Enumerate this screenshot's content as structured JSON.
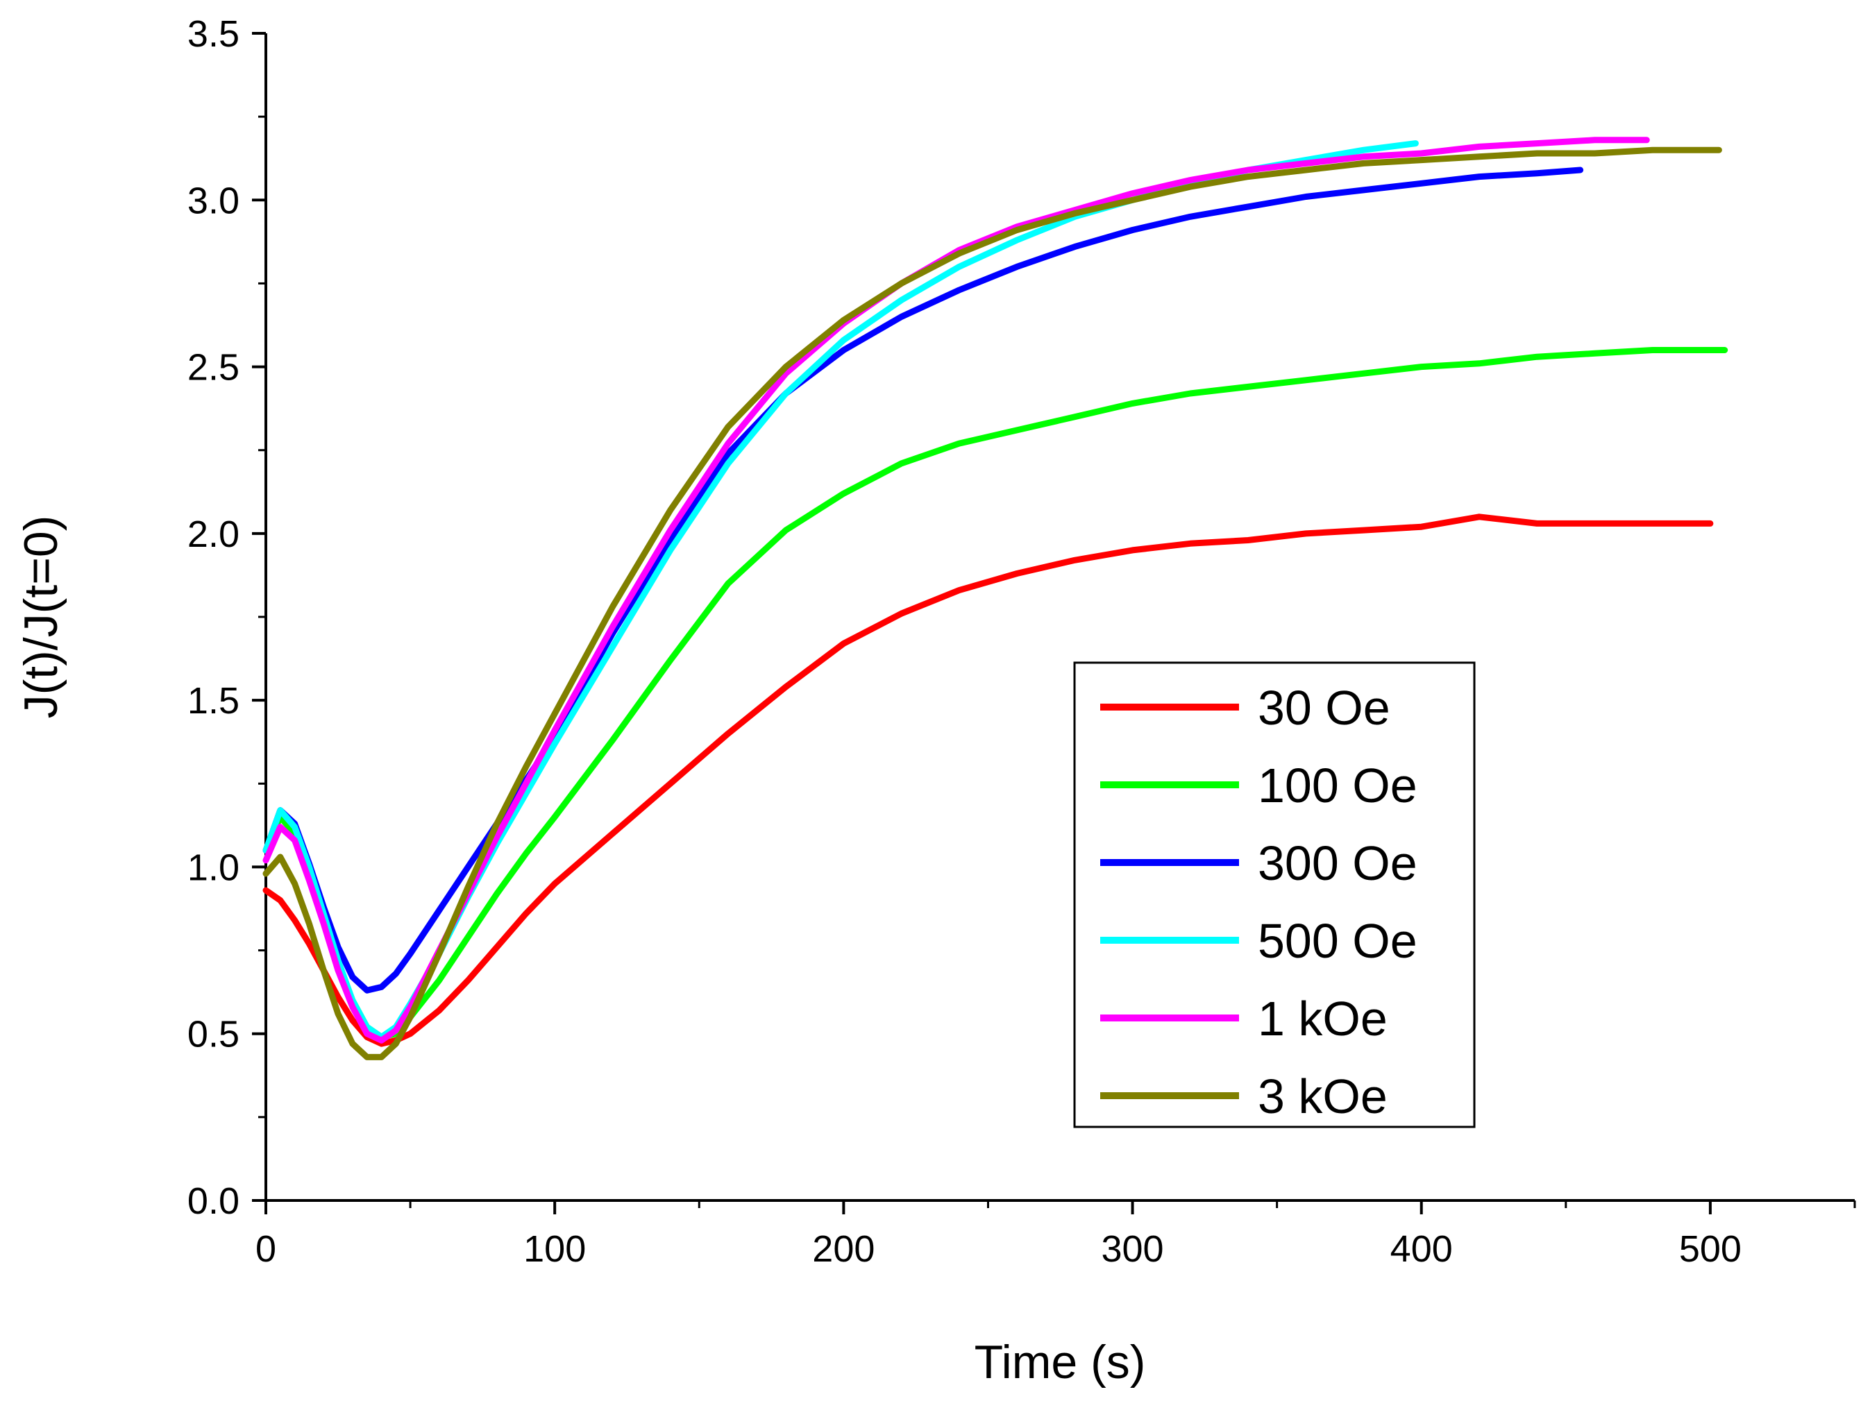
{
  "chart_data": {
    "type": "line",
    "title": "",
    "xlabel": "Time (s)",
    "ylabel": "J(t)/J(t=0)",
    "xlim": [
      0,
      550
    ],
    "ylim": [
      0.0,
      3.5
    ],
    "xticks": [
      "0",
      "100",
      "200",
      "300",
      "400",
      "500"
    ],
    "yticks": [
      "0.0",
      "0.5",
      "1.0",
      "1.5",
      "2.0",
      "2.5",
      "3.0",
      "3.5"
    ],
    "grid": false,
    "legend_position": "center-right",
    "series": [
      {
        "name": "30 Oe",
        "color": "#ff0000",
        "x": [
          0,
          5,
          10,
          15,
          20,
          25,
          30,
          35,
          40,
          45,
          50,
          60,
          70,
          80,
          90,
          100,
          120,
          140,
          160,
          180,
          200,
          220,
          240,
          260,
          280,
          300,
          320,
          340,
          360,
          380,
          400,
          420,
          440,
          460,
          480,
          500
        ],
        "y": [
          0.93,
          0.9,
          0.84,
          0.77,
          0.69,
          0.61,
          0.54,
          0.49,
          0.47,
          0.48,
          0.5,
          0.57,
          0.66,
          0.76,
          0.86,
          0.95,
          1.1,
          1.25,
          1.4,
          1.54,
          1.67,
          1.76,
          1.83,
          1.88,
          1.92,
          1.95,
          1.97,
          1.98,
          2.0,
          2.01,
          2.02,
          2.05,
          2.03,
          2.03,
          2.03,
          2.03
        ]
      },
      {
        "name": "100 Oe",
        "color": "#00ff00",
        "x": [
          0,
          5,
          10,
          15,
          20,
          25,
          30,
          35,
          40,
          45,
          50,
          60,
          70,
          80,
          90,
          100,
          120,
          140,
          160,
          180,
          200,
          220,
          240,
          260,
          280,
          300,
          320,
          340,
          360,
          380,
          400,
          420,
          440,
          460,
          480,
          505
        ],
        "y": [
          1.05,
          1.15,
          1.1,
          0.98,
          0.84,
          0.71,
          0.6,
          0.52,
          0.49,
          0.5,
          0.55,
          0.66,
          0.79,
          0.92,
          1.04,
          1.15,
          1.38,
          1.62,
          1.85,
          2.01,
          2.12,
          2.21,
          2.27,
          2.31,
          2.35,
          2.39,
          2.42,
          2.44,
          2.46,
          2.48,
          2.5,
          2.51,
          2.53,
          2.54,
          2.55,
          2.55
        ]
      },
      {
        "name": "300 Oe",
        "color": "#0000ff",
        "x": [
          0,
          5,
          10,
          15,
          20,
          25,
          30,
          35,
          40,
          45,
          50,
          60,
          70,
          80,
          90,
          100,
          120,
          140,
          160,
          180,
          200,
          220,
          240,
          260,
          280,
          300,
          320,
          340,
          360,
          380,
          400,
          420,
          440,
          455
        ],
        "y": [
          1.05,
          1.17,
          1.13,
          1.01,
          0.88,
          0.76,
          0.67,
          0.63,
          0.64,
          0.68,
          0.74,
          0.87,
          1.0,
          1.13,
          1.26,
          1.39,
          1.7,
          1.98,
          2.24,
          2.42,
          2.55,
          2.65,
          2.73,
          2.8,
          2.86,
          2.91,
          2.95,
          2.98,
          3.01,
          3.03,
          3.05,
          3.07,
          3.08,
          3.09
        ]
      },
      {
        "name": "500 Oe",
        "color": "#00ffff",
        "x": [
          0,
          5,
          10,
          15,
          20,
          25,
          30,
          35,
          40,
          45,
          50,
          60,
          70,
          80,
          90,
          100,
          120,
          140,
          160,
          180,
          200,
          220,
          240,
          260,
          280,
          300,
          320,
          340,
          360,
          380,
          398
        ],
        "y": [
          1.05,
          1.17,
          1.12,
          1.0,
          0.86,
          0.72,
          0.6,
          0.52,
          0.49,
          0.52,
          0.59,
          0.74,
          0.91,
          1.07,
          1.22,
          1.37,
          1.66,
          1.95,
          2.21,
          2.42,
          2.58,
          2.7,
          2.8,
          2.88,
          2.95,
          3.0,
          3.05,
          3.09,
          3.12,
          3.15,
          3.17
        ]
      },
      {
        "name": "1 kOe",
        "color": "#ff00ff",
        "x": [
          0,
          5,
          10,
          15,
          20,
          25,
          30,
          35,
          40,
          45,
          50,
          60,
          70,
          80,
          90,
          100,
          120,
          140,
          160,
          180,
          200,
          220,
          240,
          260,
          280,
          300,
          320,
          340,
          360,
          380,
          400,
          420,
          440,
          460,
          478
        ],
        "y": [
          1.02,
          1.12,
          1.08,
          0.96,
          0.83,
          0.69,
          0.58,
          0.5,
          0.48,
          0.51,
          0.58,
          0.75,
          0.92,
          1.09,
          1.25,
          1.41,
          1.72,
          2.01,
          2.27,
          2.48,
          2.63,
          2.75,
          2.85,
          2.92,
          2.97,
          3.02,
          3.06,
          3.09,
          3.11,
          3.13,
          3.14,
          3.16,
          3.17,
          3.18,
          3.18
        ]
      },
      {
        "name": "3 kOe",
        "color": "#808000",
        "x": [
          0,
          5,
          10,
          15,
          20,
          25,
          30,
          35,
          40,
          45,
          50,
          60,
          70,
          80,
          90,
          100,
          120,
          140,
          160,
          180,
          200,
          220,
          240,
          260,
          280,
          300,
          320,
          340,
          360,
          380,
          400,
          420,
          440,
          460,
          480,
          503
        ],
        "y": [
          0.98,
          1.03,
          0.95,
          0.83,
          0.69,
          0.56,
          0.47,
          0.43,
          0.43,
          0.47,
          0.55,
          0.74,
          0.94,
          1.13,
          1.3,
          1.46,
          1.78,
          2.07,
          2.32,
          2.5,
          2.64,
          2.75,
          2.84,
          2.91,
          2.96,
          3.0,
          3.04,
          3.07,
          3.09,
          3.11,
          3.12,
          3.13,
          3.14,
          3.14,
          3.15,
          3.15
        ]
      }
    ]
  }
}
